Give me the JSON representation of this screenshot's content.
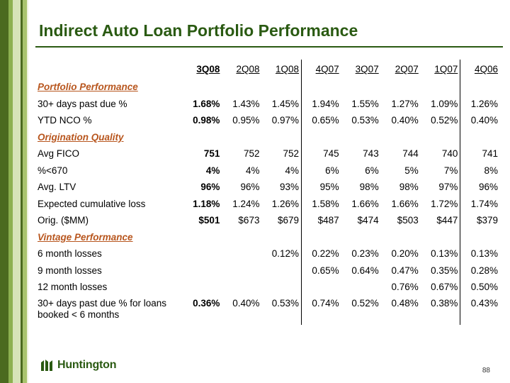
{
  "title": "Indirect Auto Loan Portfolio Performance",
  "columns": [
    "3Q08",
    "2Q08",
    "1Q08",
    "4Q07",
    "3Q07",
    "2Q07",
    "1Q07",
    "4Q06"
  ],
  "sections": [
    {
      "heading": "Portfolio Performance",
      "rows": [
        {
          "label": "30+ days past due %",
          "values": [
            "1.68%",
            "1.43%",
            "1.45%",
            "1.94%",
            "1.55%",
            "1.27%",
            "1.09%",
            "1.26%"
          ]
        },
        {
          "label": "YTD NCO %",
          "values": [
            "0.98%",
            "0.95%",
            "0.97%",
            "0.65%",
            "0.53%",
            "0.40%",
            "0.52%",
            "0.40%"
          ]
        }
      ]
    },
    {
      "heading": "Origination Quality",
      "rows": [
        {
          "label": "Avg FICO",
          "values": [
            "751",
            "752",
            "752",
            "745",
            "743",
            "744",
            "740",
            "741"
          ]
        },
        {
          "label": "%<670",
          "values": [
            "4%",
            "4%",
            "4%",
            "6%",
            "6%",
            "5%",
            "7%",
            "8%"
          ]
        },
        {
          "label": "Avg. LTV",
          "values": [
            "96%",
            "96%",
            "93%",
            "95%",
            "98%",
            "98%",
            "97%",
            "96%"
          ]
        },
        {
          "label": "Expected cumulative loss",
          "values": [
            "1.18%",
            "1.24%",
            "1.26%",
            "1.58%",
            "1.66%",
            "1.66%",
            "1.72%",
            "1.74%"
          ]
        },
        {
          "label": "Orig. ($MM)",
          "values": [
            "$501",
            "$673",
            "$679",
            "$487",
            "$474",
            "$503",
            "$447",
            "$379"
          ]
        }
      ]
    },
    {
      "heading": "Vintage Performance",
      "rows": [
        {
          "label": "6 month losses",
          "values": [
            "",
            "",
            "0.12%",
            "0.22%",
            "0.23%",
            "0.20%",
            "0.13%",
            "0.13%"
          ]
        },
        {
          "label": "9 month losses",
          "values": [
            "",
            "",
            "",
            "0.65%",
            "0.64%",
            "0.47%",
            "0.35%",
            "0.28%"
          ]
        },
        {
          "label": "12 month losses",
          "values": [
            "",
            "",
            "",
            "",
            "",
            "0.76%",
            "0.67%",
            "0.50%"
          ]
        },
        {
          "label": "30+ days past due % for loans booked < 6 months",
          "values": [
            "0.36%",
            "0.40%",
            "0.53%",
            "0.74%",
            "0.52%",
            "0.48%",
            "0.38%",
            "0.43%"
          ],
          "tall": true
        }
      ]
    }
  ],
  "logo_text": "Huntington",
  "logo_icon": "huntington-leaf-icon",
  "page_number": "88",
  "colors": {
    "brand_green": "#2a5a12",
    "section_heading": "#b8561e"
  }
}
